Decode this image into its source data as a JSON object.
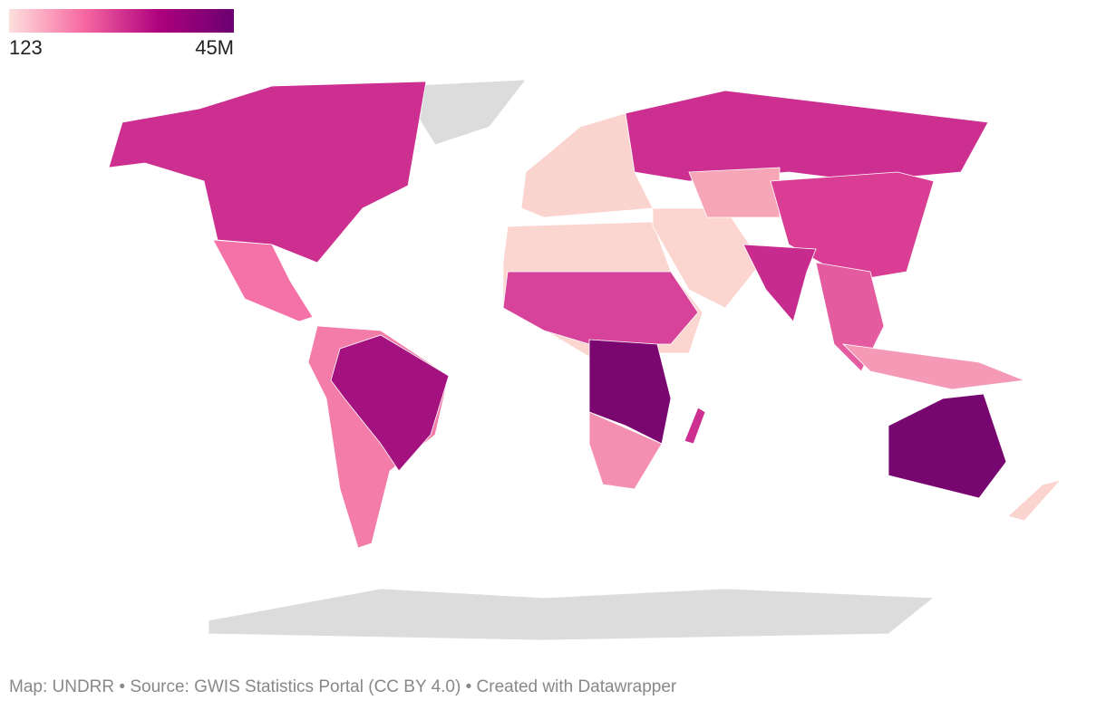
{
  "legend": {
    "min_label": "123",
    "max_label": "45M",
    "colors": [
      "#fde0dd",
      "#f768a1",
      "#ae017e",
      "#6a0070"
    ]
  },
  "footer": "Map: UNDRR • Source: GWIS Statistics Portal (CC BY 4.0) • Created with Datawrapper"
}
